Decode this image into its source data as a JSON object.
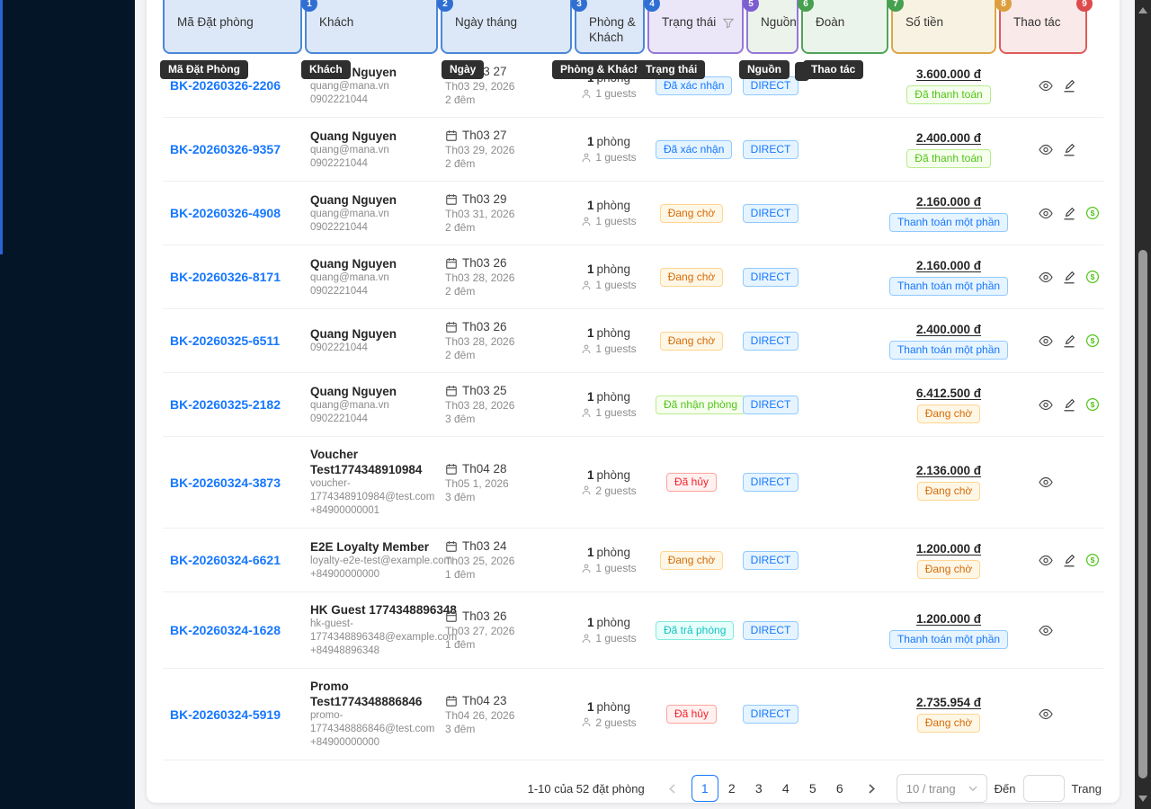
{
  "theme": {
    "sidebar_bg": "#041527",
    "accent_blue": "#1677ff",
    "status_orange": "#d46b08",
    "status_green": "#52c41a",
    "status_red": "#f5222d",
    "status_cyan": "#13c2c2"
  },
  "header": {
    "columns": [
      {
        "label": "Mã Đặt phòng",
        "badge": "",
        "badge_color": "",
        "color": "blue",
        "filter": false
      },
      {
        "label": "Khách",
        "badge": "1",
        "badge_color": "blue",
        "color": "blue",
        "filter": false
      },
      {
        "label": "Ngày tháng",
        "badge": "2",
        "badge_color": "blue",
        "color": "blue",
        "filter": false
      },
      {
        "label": "Phòng & Khách",
        "badge": "3",
        "badge_color": "blue",
        "color": "blue",
        "filter": false
      },
      {
        "label": "Trạng thái",
        "badge": "4",
        "badge_color": "blue",
        "color": "purple",
        "filter": true
      },
      {
        "label": "Nguồn",
        "badge": "5",
        "badge_color": "purple",
        "color": "purplegreen",
        "filter": false
      },
      {
        "label": "Đoàn",
        "badge": "6",
        "badge_color": "green",
        "color": "green",
        "filter": false
      },
      {
        "label": "Số tiền",
        "badge": "7",
        "badge_color": "green",
        "color": "orange",
        "filter": false
      },
      {
        "label": "Thao tác",
        "badge": "8",
        "badge_color": "orange",
        "color": "red",
        "filter": false,
        "end_badge": "9"
      }
    ]
  },
  "tooltips": [
    "Mã Đặt Phòng",
    "Khách",
    "Ngày",
    "Phòng & Khách",
    "Trạng thái",
    "Nguồn",
    "Thao tác"
  ],
  "rows": [
    {
      "code": "BK-20260326-2206",
      "guest": {
        "name_lines": [
          "Quang Nguyen"
        ],
        "email_lines": [
          "quang@mana.vn"
        ],
        "phone": "0902221044"
      },
      "dates": {
        "checkin": "Th03 27",
        "checkout": "Th03 29, 2026",
        "nights": "2 đêm"
      },
      "occupancy": {
        "rooms_num": "1",
        "rooms_label": "phòng",
        "guests": "1 guests"
      },
      "status": {
        "label": "Đã xác nhận",
        "type": "blue"
      },
      "source": "DIRECT",
      "amount": "3.600.000 đ",
      "payment": {
        "label": "Đã thanh toán",
        "type": "green"
      },
      "actions": [
        "view",
        "edit"
      ]
    },
    {
      "code": "BK-20260326-9357",
      "guest": {
        "name_lines": [
          "Quang Nguyen"
        ],
        "email_lines": [
          "quang@mana.vn"
        ],
        "phone": "0902221044"
      },
      "dates": {
        "checkin": "Th03 27",
        "checkout": "Th03 29, 2026",
        "nights": "2 đêm"
      },
      "occupancy": {
        "rooms_num": "1",
        "rooms_label": "phòng",
        "guests": "1 guests"
      },
      "status": {
        "label": "Đã xác nhận",
        "type": "blue"
      },
      "source": "DIRECT",
      "amount": "2.400.000 đ",
      "payment": {
        "label": "Đã thanh toán",
        "type": "green"
      },
      "actions": [
        "view",
        "edit"
      ]
    },
    {
      "code": "BK-20260326-4908",
      "guest": {
        "name_lines": [
          "Quang Nguyen"
        ],
        "email_lines": [
          "quang@mana.vn"
        ],
        "phone": "0902221044"
      },
      "dates": {
        "checkin": "Th03 29",
        "checkout": "Th03 31, 2026",
        "nights": "2 đêm"
      },
      "occupancy": {
        "rooms_num": "1",
        "rooms_label": "phòng",
        "guests": "1 guests"
      },
      "status": {
        "label": "Đang chờ",
        "type": "orange"
      },
      "source": "DIRECT",
      "amount": "2.160.000 đ",
      "payment": {
        "label": "Thanh toán một phần",
        "type": "blue"
      },
      "actions": [
        "view",
        "edit",
        "pay"
      ]
    },
    {
      "code": "BK-20260326-8171",
      "guest": {
        "name_lines": [
          "Quang Nguyen"
        ],
        "email_lines": [
          "quang@mana.vn"
        ],
        "phone": "0902221044"
      },
      "dates": {
        "checkin": "Th03 26",
        "checkout": "Th03 28, 2026",
        "nights": "2 đêm"
      },
      "occupancy": {
        "rooms_num": "1",
        "rooms_label": "phòng",
        "guests": "1 guests"
      },
      "status": {
        "label": "Đang chờ",
        "type": "orange"
      },
      "source": "DIRECT",
      "amount": "2.160.000 đ",
      "payment": {
        "label": "Thanh toán một phần",
        "type": "blue"
      },
      "actions": [
        "view",
        "edit",
        "pay"
      ]
    },
    {
      "code": "BK-20260325-6511",
      "guest": {
        "name_lines": [
          "Quang Nguyen"
        ],
        "email_lines": [],
        "phone": "0902221044"
      },
      "dates": {
        "checkin": "Th03 26",
        "checkout": "Th03 28, 2026",
        "nights": "2 đêm"
      },
      "occupancy": {
        "rooms_num": "1",
        "rooms_label": "phòng",
        "guests": "1 guests"
      },
      "status": {
        "label": "Đang chờ",
        "type": "orange"
      },
      "source": "DIRECT",
      "amount": "2.400.000 đ",
      "payment": {
        "label": "Thanh toán một phần",
        "type": "blue"
      },
      "actions": [
        "view",
        "edit",
        "pay"
      ]
    },
    {
      "code": "BK-20260325-2182",
      "guest": {
        "name_lines": [
          "Quang Nguyen"
        ],
        "email_lines": [
          "quang@mana.vn"
        ],
        "phone": "0902221044"
      },
      "dates": {
        "checkin": "Th03 25",
        "checkout": "Th03 28, 2026",
        "nights": "3 đêm"
      },
      "occupancy": {
        "rooms_num": "1",
        "rooms_label": "phòng",
        "guests": "1 guests"
      },
      "status": {
        "label": "Đã nhận phòng",
        "type": "green"
      },
      "source": "DIRECT",
      "amount": "6.412.500 đ",
      "payment": {
        "label": "Đang chờ",
        "type": "orange"
      },
      "actions": [
        "view",
        "edit",
        "pay"
      ]
    },
    {
      "code": "BK-20260324-3873",
      "guest": {
        "name_lines": [
          "Voucher",
          "Test1774348910984"
        ],
        "email_lines": [
          "voucher-",
          "1774348910984@test.com"
        ],
        "phone": "+84900000001"
      },
      "dates": {
        "checkin": "Th04 28",
        "checkout": "Th05 1, 2026",
        "nights": "3 đêm"
      },
      "occupancy": {
        "rooms_num": "1",
        "rooms_label": "phòng",
        "guests": "2 guests"
      },
      "status": {
        "label": "Đã hủy",
        "type": "red"
      },
      "source": "DIRECT",
      "amount": "2.136.000 đ",
      "payment": {
        "label": "Đang chờ",
        "type": "orange"
      },
      "actions": [
        "view"
      ]
    },
    {
      "code": "BK-20260324-6621",
      "guest": {
        "name_lines": [
          "E2E Loyalty Member"
        ],
        "email_lines": [
          "loyalty-e2e-test@example.com"
        ],
        "phone": "+84900000000"
      },
      "dates": {
        "checkin": "Th03 24",
        "checkout": "Th03 25, 2026",
        "nights": "1 đêm"
      },
      "occupancy": {
        "rooms_num": "1",
        "rooms_label": "phòng",
        "guests": "1 guests"
      },
      "status": {
        "label": "Đang chờ",
        "type": "orange"
      },
      "source": "DIRECT",
      "amount": "1.200.000 đ",
      "payment": {
        "label": "Đang chờ",
        "type": "orange"
      },
      "actions": [
        "view",
        "edit",
        "pay"
      ]
    },
    {
      "code": "BK-20260324-1628",
      "guest": {
        "name_lines": [
          "HK Guest 1774348896348"
        ],
        "email_lines": [
          "hk-guest-",
          "1774348896348@example.com"
        ],
        "phone": "+84948896348"
      },
      "dates": {
        "checkin": "Th03 26",
        "checkout": "Th03 27, 2026",
        "nights": "1 đêm"
      },
      "occupancy": {
        "rooms_num": "1",
        "rooms_label": "phòng",
        "guests": "1 guests"
      },
      "status": {
        "label": "Đã trả phòng",
        "type": "cyan"
      },
      "source": "DIRECT",
      "amount": "1.200.000 đ",
      "payment": {
        "label": "Thanh toán một phần",
        "type": "blue"
      },
      "actions": [
        "view"
      ]
    },
    {
      "code": "BK-20260324-5919",
      "guest": {
        "name_lines": [
          "Promo",
          "Test1774348886846"
        ],
        "email_lines": [
          "promo-",
          "1774348886846@test.com"
        ],
        "phone": "+84900000000"
      },
      "dates": {
        "checkin": "Th04 23",
        "checkout": "Th04 26, 2026",
        "nights": "3 đêm"
      },
      "occupancy": {
        "rooms_num": "1",
        "rooms_label": "phòng",
        "guests": "2 guests"
      },
      "status": {
        "label": "Đã hủy",
        "type": "red"
      },
      "source": "DIRECT",
      "amount": "2.735.954 đ",
      "payment": {
        "label": "Đang chờ",
        "type": "orange"
      },
      "actions": [
        "view"
      ]
    }
  ],
  "footer": {
    "summary": "1-10 của 52 đặt phòng",
    "pages": [
      "1",
      "2",
      "3",
      "4",
      "5",
      "6"
    ],
    "active_page": "1",
    "page_size": "10 / trang",
    "goto_label": "Đến",
    "goto_suffix": "Trang"
  }
}
